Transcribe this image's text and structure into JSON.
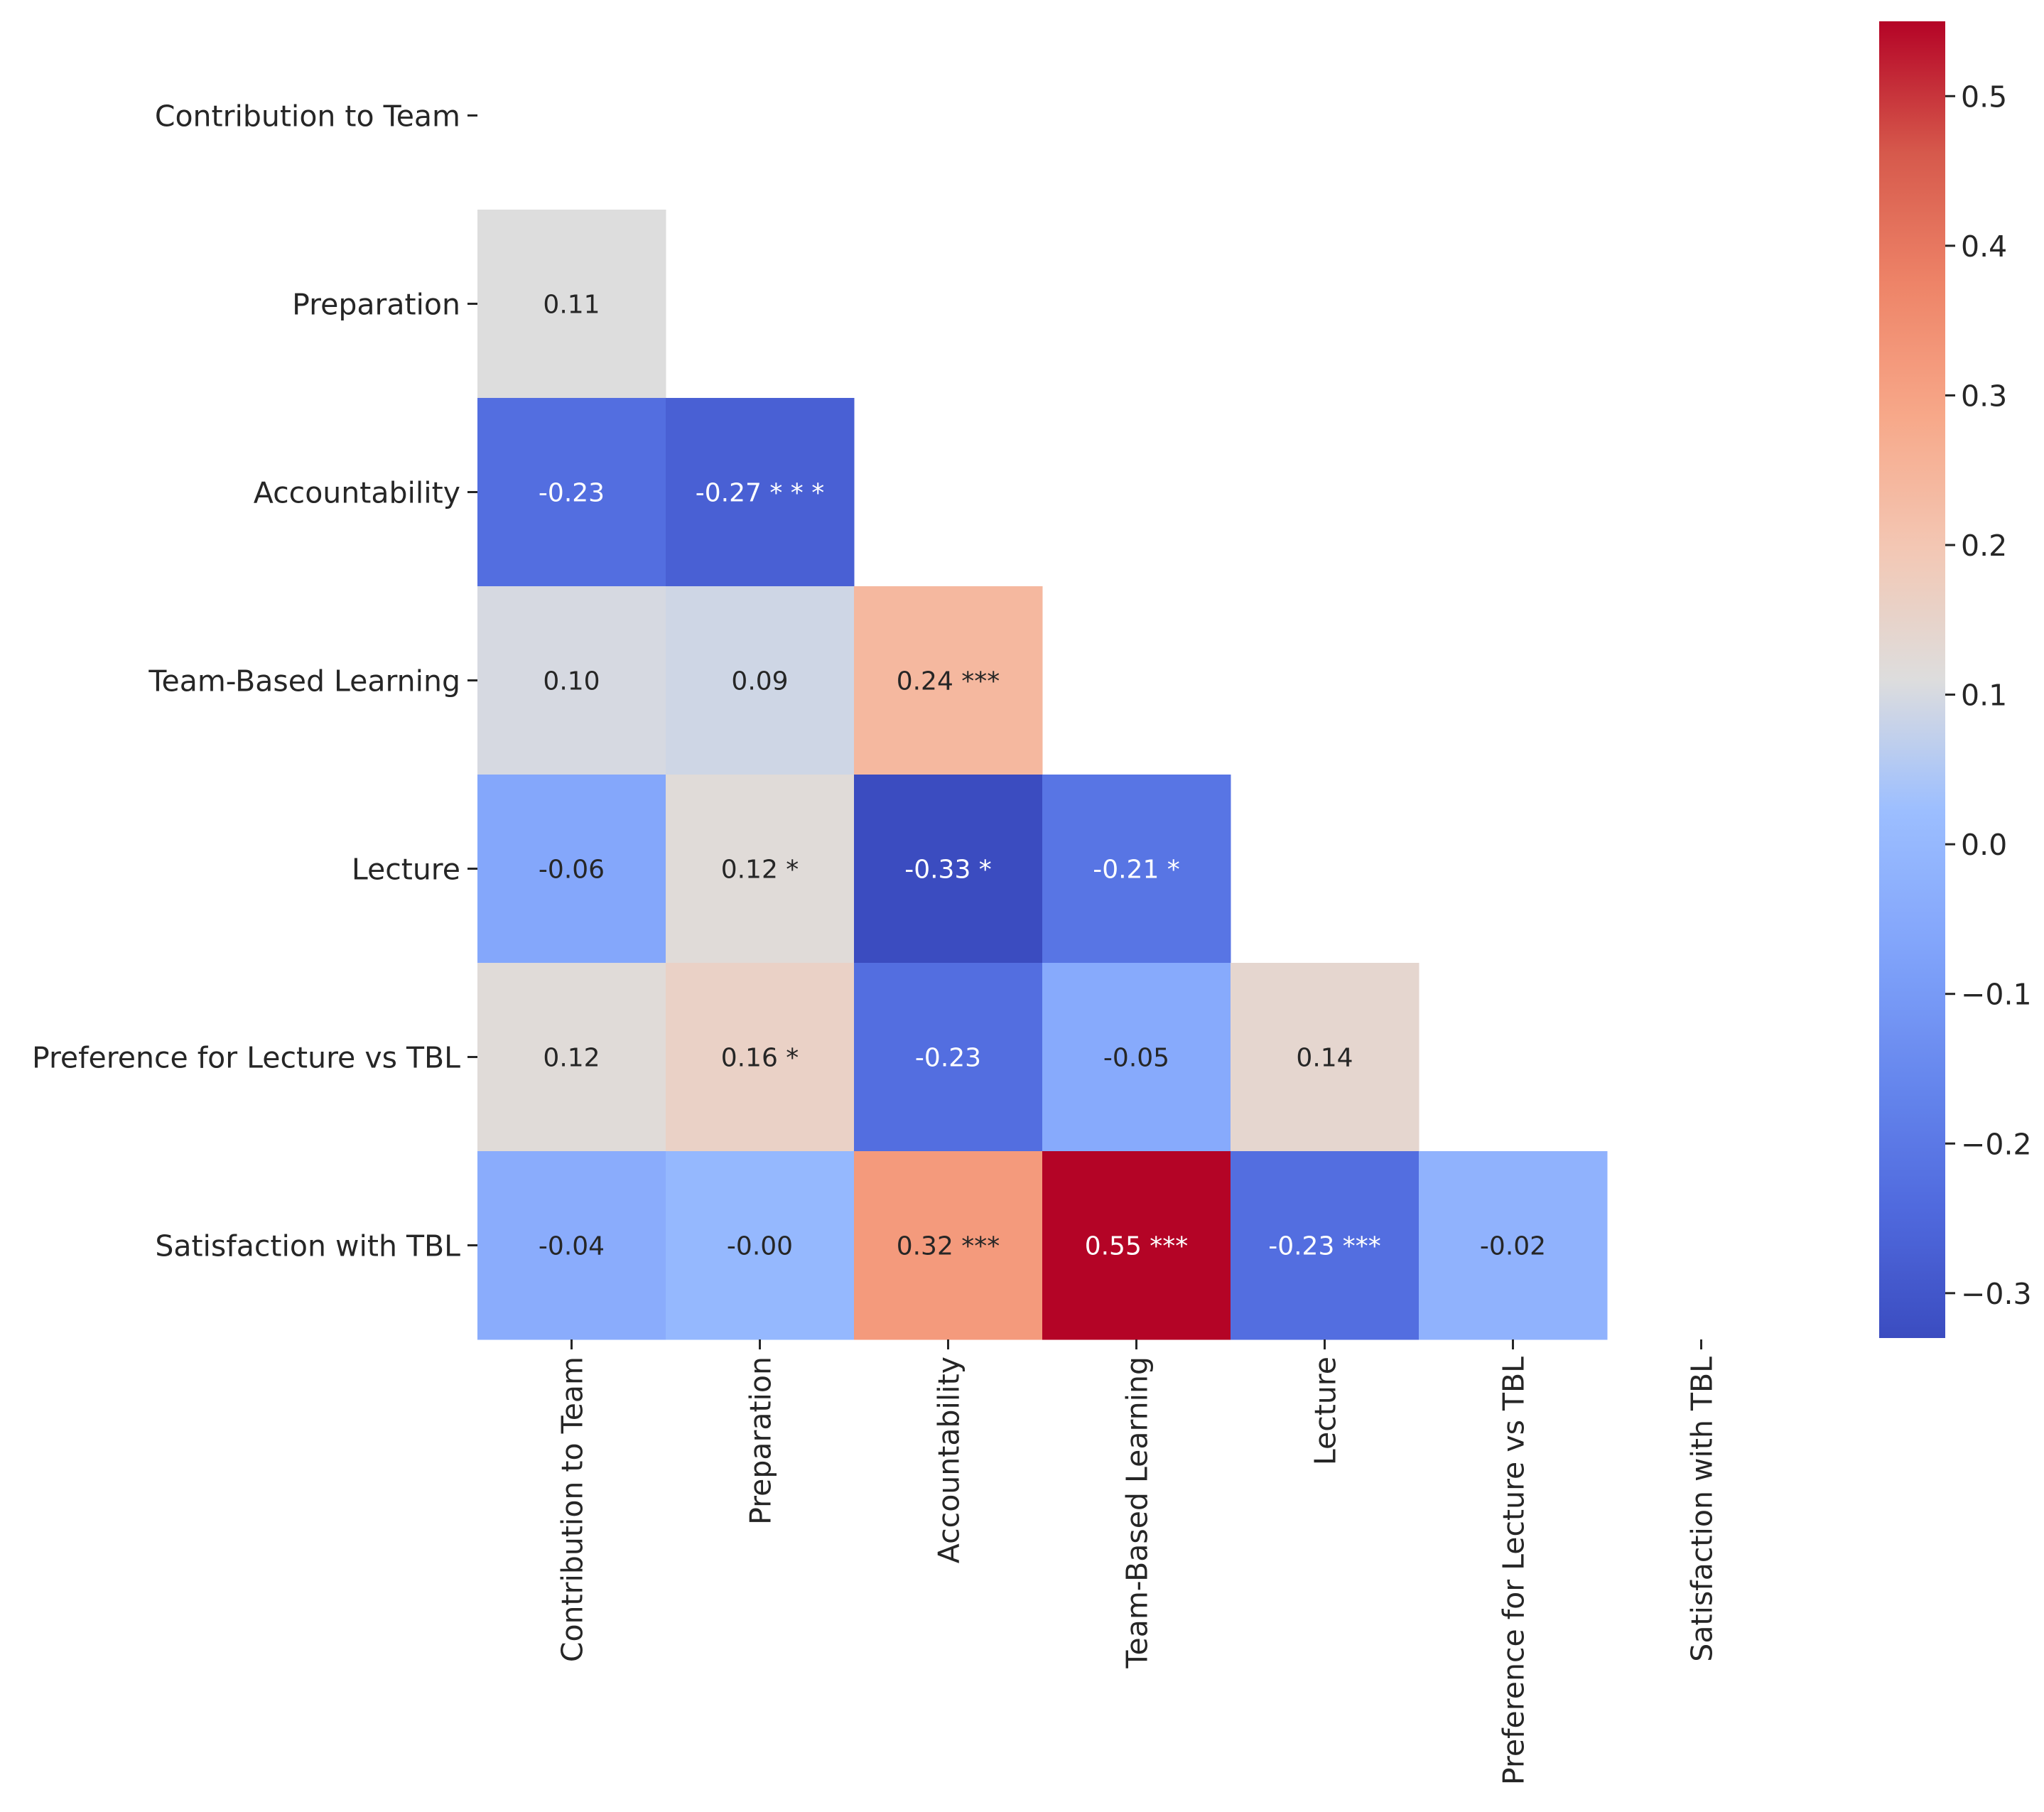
{
  "chart_data": {
    "type": "heatmap",
    "title": "",
    "variables": [
      "Contribution to Team",
      "Preparation",
      "Accountability",
      "Team-Based Learning",
      "Lecture",
      "Preference for Lecture vs TBL",
      "Satisfaction with TBL"
    ],
    "cells": [
      {
        "row": 1,
        "col": 0,
        "value": 0.11,
        "label": "0.11"
      },
      {
        "row": 2,
        "col": 0,
        "value": -0.23,
        "label": "-0.23"
      },
      {
        "row": 2,
        "col": 1,
        "value": -0.27,
        "label": "-0.27 * * *"
      },
      {
        "row": 3,
        "col": 0,
        "value": 0.1,
        "label": "0.10"
      },
      {
        "row": 3,
        "col": 1,
        "value": 0.09,
        "label": "0.09"
      },
      {
        "row": 3,
        "col": 2,
        "value": 0.24,
        "label": "0.24 ***"
      },
      {
        "row": 4,
        "col": 0,
        "value": -0.06,
        "label": "-0.06"
      },
      {
        "row": 4,
        "col": 1,
        "value": 0.12,
        "label": "0.12 *"
      },
      {
        "row": 4,
        "col": 2,
        "value": -0.33,
        "label": "-0.33 *"
      },
      {
        "row": 4,
        "col": 3,
        "value": -0.21,
        "label": "-0.21 *"
      },
      {
        "row": 5,
        "col": 0,
        "value": 0.12,
        "label": "0.12"
      },
      {
        "row": 5,
        "col": 1,
        "value": 0.16,
        "label": "0.16 *"
      },
      {
        "row": 5,
        "col": 2,
        "value": -0.23,
        "label": "-0.23"
      },
      {
        "row": 5,
        "col": 3,
        "value": -0.05,
        "label": "-0.05"
      },
      {
        "row": 5,
        "col": 4,
        "value": 0.14,
        "label": "0.14"
      },
      {
        "row": 6,
        "col": 0,
        "value": -0.04,
        "label": "-0.04"
      },
      {
        "row": 6,
        "col": 1,
        "value": -0.0,
        "label": "-0.00"
      },
      {
        "row": 6,
        "col": 2,
        "value": 0.32,
        "label": "0.32 ***"
      },
      {
        "row": 6,
        "col": 3,
        "value": 0.55,
        "label": "0.55 ***"
      },
      {
        "row": 6,
        "col": 4,
        "value": -0.23,
        "label": "-0.23 ***"
      },
      {
        "row": 6,
        "col": 5,
        "value": -0.02,
        "label": "-0.02"
      }
    ],
    "colorbar": {
      "colormap": "coolwarm",
      "vmin": -0.33,
      "vmax": 0.55,
      "ticks": [
        0.5,
        0.4,
        0.3,
        0.2,
        0.1,
        0.0,
        -0.1,
        -0.2,
        -0.3
      ],
      "tick_labels": [
        "0.5",
        "0.4",
        "0.3",
        "0.2",
        "0.1",
        "0.0",
        "−0.1",
        "−0.2",
        "−0.3"
      ]
    }
  }
}
